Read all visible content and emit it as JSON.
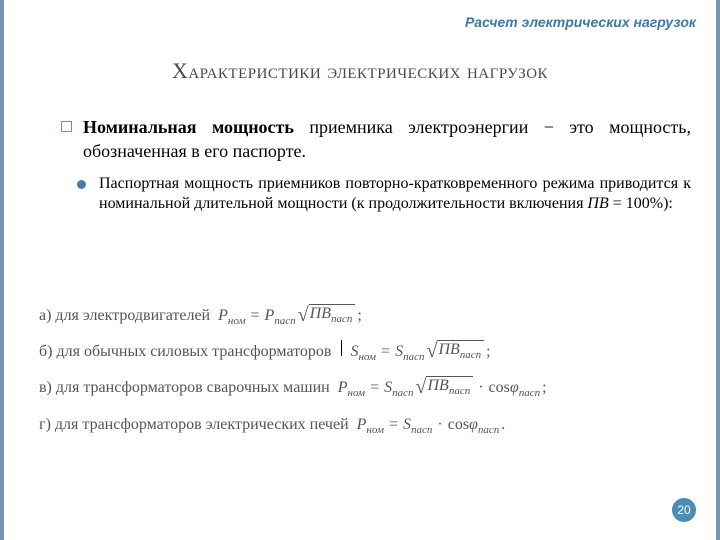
{
  "colors": {
    "border": "#7694b5",
    "breadcrumb": "#3a7aa8",
    "title": "#4a4a4a",
    "bullet_circle": "#4a7aa8",
    "formula_text": "#555555",
    "page_badge_bg": "#4a8db5",
    "page_badge_fg": "#ffffff",
    "background": "#ffffff"
  },
  "typography": {
    "title_fontsize": 22,
    "body_fontsize": 18,
    "sub_body_fontsize": 16,
    "formula_fontsize": 16,
    "breadcrumb_fontsize": 14
  },
  "breadcrumb": "Расчет электрических нагрузок",
  "title": "Характеристики электрических нагрузок",
  "bullet1_bold": "Номинальная мощность",
  "bullet1_rest": " приемника электроэнергии − это мощность, обозначенная в его паспорте.",
  "bullet2_pre": "Паспортная мощность приемников повторно-кратковременного режима приводится к номинальной длительной мощности (к продолжительности включения ",
  "bullet2_pv": "ПВ",
  "bullet2_post": " = 100%):",
  "formulas": [
    {
      "label": "а) для электродвигателей",
      "lhs_sym": "P",
      "lhs_sub": "ном",
      "rhs1_sym": "P",
      "rhs1_sub": "пасп",
      "sqrt_sym": "ПВ",
      "sqrt_sub": "пасп",
      "has_cos": false,
      "terminator": ";"
    },
    {
      "label": "б) для обычных силовых трансформаторов",
      "lhs_sym": "S",
      "lhs_sub": "ном",
      "rhs1_sym": "S",
      "rhs1_sub": "пасп",
      "sqrt_sym": "ПВ",
      "sqrt_sub": "пасп",
      "has_cos": false,
      "terminator": ";",
      "has_cursor": true
    },
    {
      "label": "в) для трансформаторов сварочных машин",
      "lhs_sym": "P",
      "lhs_sub": "ном",
      "rhs1_sym": "S",
      "rhs1_sub": "пасп",
      "sqrt_sym": "ПВ",
      "sqrt_sub": "пасп",
      "has_cos": true,
      "cos_sub": "пасп",
      "terminator": ";"
    },
    {
      "label": "г) для трансформаторов электрических печей",
      "lhs_sym": "P",
      "lhs_sub": "ном",
      "rhs1_sym": "S",
      "rhs1_sub": "пасп",
      "sqrt_sym": null,
      "has_cos": true,
      "cos_sub": "пасп",
      "terminator": "."
    }
  ],
  "page_number": "20"
}
